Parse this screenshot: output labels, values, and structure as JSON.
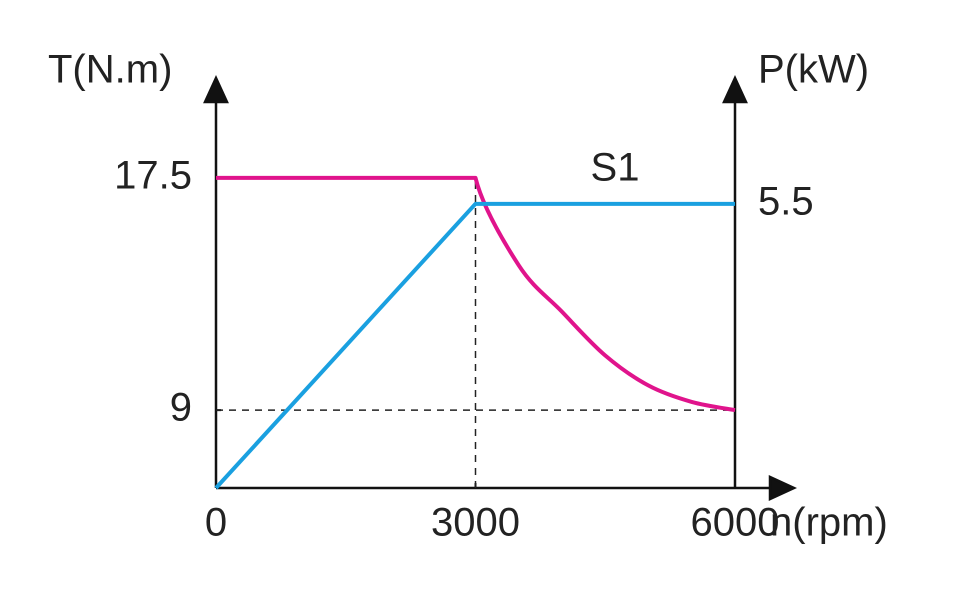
{
  "chart_data": {
    "type": "line",
    "xlabel": "n(rpm)",
    "ylabel": "T(N.m)",
    "y2label": "P(kW)",
    "annotation": "S1",
    "xlim": [
      0,
      6000
    ],
    "xticks": [
      0,
      3000,
      6000
    ],
    "ylim": [
      6.15,
      20.9
    ],
    "yticks": [
      9,
      17.5
    ],
    "y2lim": [
      0,
      7.8
    ],
    "y2ticks": [
      5.5
    ],
    "series": [
      {
        "color": "#e0148c",
        "axis": "y",
        "x": [
          0,
          3000,
          3500,
          4000,
          4500,
          5000,
          5500,
          6000
        ],
        "values": [
          17.5,
          17.5,
          14.3,
          12.6,
          11.0,
          9.9,
          9.3,
          9.0
        ]
      },
      {
        "color": "#1aa0e0",
        "axis": "y2",
        "x": [
          0,
          3000,
          6000
        ],
        "values": [
          0,
          5.5,
          5.5
        ]
      }
    ]
  }
}
